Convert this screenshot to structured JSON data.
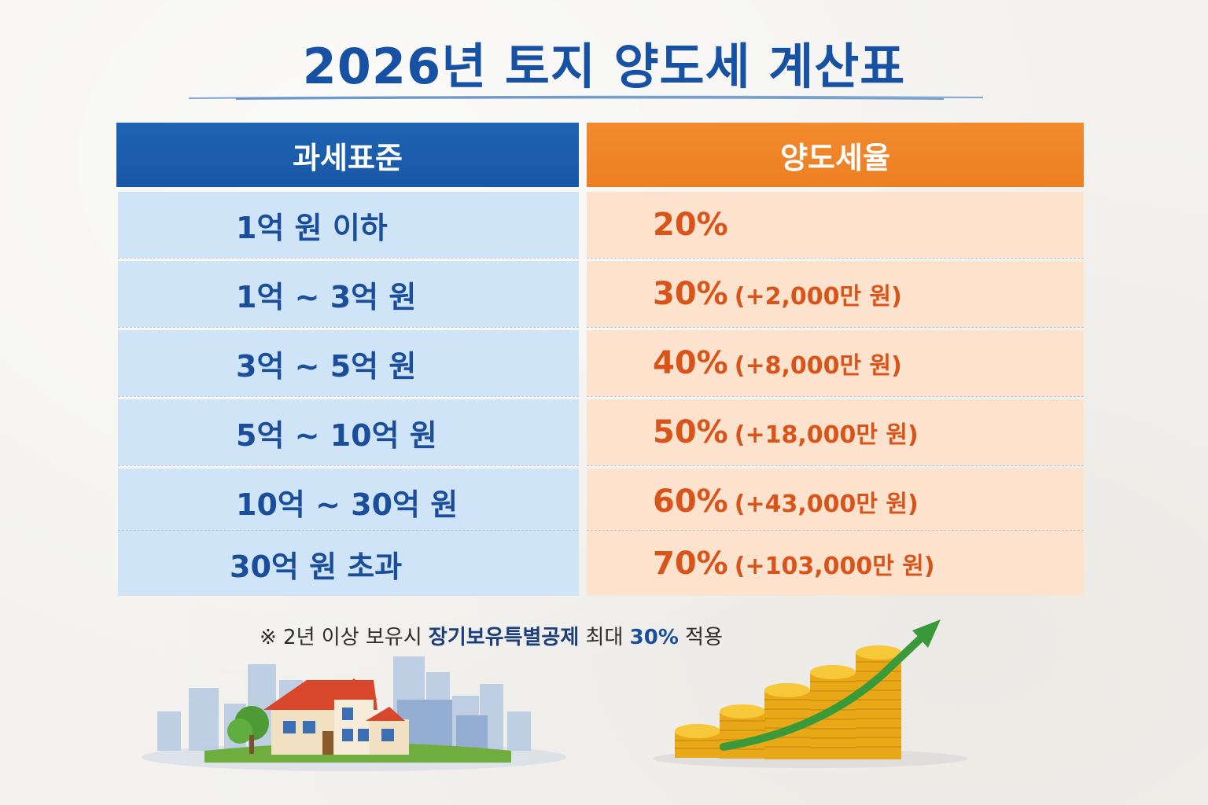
{
  "title": "2026년 토지 양도세 계산표",
  "header": {
    "base_label": "과세표준",
    "rate_label": "양도세율"
  },
  "rows": [
    {
      "base": "1억 원 이하",
      "rate": "20%",
      "extra": ""
    },
    {
      "base": "1억 ~ 3억 원",
      "rate": "30%",
      "extra": "(+2,000만 원)"
    },
    {
      "base": "3억 ~ 5억 원",
      "rate": "40%",
      "extra": "(+8,000만 원)"
    },
    {
      "base": "5억 ~ 10억 원",
      "rate": "50%",
      "extra": "(+18,000만 원)"
    },
    {
      "base": "10억 ~ 30억 원",
      "rate": "60%",
      "extra": "(+43,000만 원)"
    },
    {
      "base": "30억 원 초과",
      "rate": "70%",
      "extra": "(+103,000만 원)"
    }
  ],
  "note": {
    "prefix": "※ 2년 이상 보유시 ",
    "highlight": "장기보유특별공제",
    "middle": " 최대 ",
    "percent": "30%",
    "suffix": " 적용"
  },
  "colors": {
    "title": "#1751a3",
    "header_left": "#1f63b3",
    "header_right": "#ec7f22",
    "cell_left": "#cfe5f7",
    "cell_right": "#fde3cd",
    "text_left": "#1a4e9a",
    "text_right": "#d9541a"
  },
  "illustrations": [
    "house-city-icon",
    "coin-stacks-growth-icon"
  ]
}
